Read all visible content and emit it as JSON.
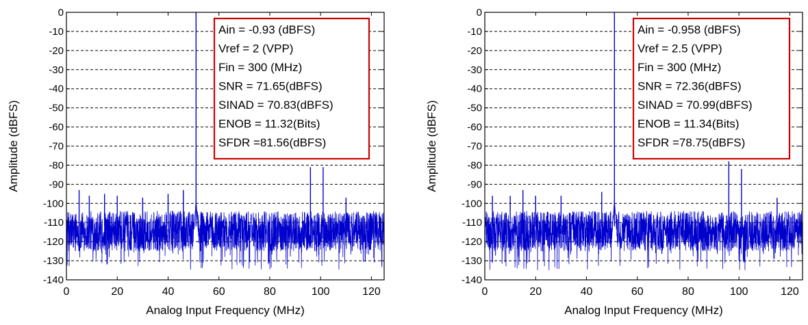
{
  "chart_data": [
    {
      "type": "line",
      "title": "",
      "xlabel": "Analog Input Frequency (MHz)",
      "ylabel": "Amplitude (dBFS)",
      "xlim": [
        0,
        125
      ],
      "ylim": [
        -140,
        0
      ],
      "xticks": [
        "0",
        "20",
        "40",
        "60",
        "80",
        "100",
        "120"
      ],
      "yticks": [
        "0",
        "-10",
        "-20",
        "-30",
        "-40",
        "-50",
        "-60",
        "-70",
        "-80",
        "-90",
        "-100",
        "-110",
        "-120",
        "-130",
        "-140"
      ],
      "grid": "horizontal-dashed",
      "series_color": "#0000cc",
      "noise_floor": {
        "band": [
          -125,
          -104
        ],
        "dips_to": -135
      },
      "spurs": [
        {
          "x": 5,
          "y": -93
        },
        {
          "x": 9,
          "y": -96
        },
        {
          "x": 15,
          "y": -95
        },
        {
          "x": 20,
          "y": -96
        },
        {
          "x": 30,
          "y": -97
        },
        {
          "x": 40,
          "y": -95
        },
        {
          "x": 46,
          "y": -93
        },
        {
          "x": 51,
          "y": 0
        },
        {
          "x": 96,
          "y": -81
        },
        {
          "x": 101,
          "y": -81
        },
        {
          "x": 110,
          "y": -97
        }
      ],
      "annotations": [
        "Ain = -0.93  (dBFS)",
        "Vref = 2 (VPP)",
        "Fin = 300 (MHz)",
        "SNR = 71.65(dBFS)",
        "SINAD = 70.83(dBFS)",
        "ENOB = 11.32(Bits)",
        "SFDR =81.56(dBFS)"
      ],
      "annotation_border": "#cc0000"
    },
    {
      "type": "line",
      "title": "",
      "xlabel": "Analog Input Frequency (MHz)",
      "ylabel": "Amplitude (dBFS)",
      "xlim": [
        0,
        125
      ],
      "ylim": [
        -140,
        0
      ],
      "xticks": [
        "0",
        "20",
        "40",
        "60",
        "80",
        "100",
        "120"
      ],
      "yticks": [
        "0",
        "-10",
        "-20",
        "-30",
        "-40",
        "-50",
        "-60",
        "-70",
        "-80",
        "-90",
        "-100",
        "-110",
        "-120",
        "-130",
        "-140"
      ],
      "grid": "horizontal-dashed",
      "series_color": "#0000cc",
      "noise_floor": {
        "band": [
          -125,
          -104
        ],
        "dips_to": -135
      },
      "spurs": [
        {
          "x": 3,
          "y": -96
        },
        {
          "x": 10,
          "y": -96
        },
        {
          "x": 15,
          "y": -93
        },
        {
          "x": 20,
          "y": -96
        },
        {
          "x": 30,
          "y": -96
        },
        {
          "x": 46,
          "y": -94
        },
        {
          "x": 51,
          "y": 0
        },
        {
          "x": 96,
          "y": -78
        },
        {
          "x": 101,
          "y": -82
        },
        {
          "x": 115,
          "y": -97
        }
      ],
      "annotations": [
        "Ain = -0.958  (dBFS)",
        "Vref = 2.5 (VPP)",
        "Fin = 300 (MHz)",
        "SNR = 72.36(dBFS)",
        "SINAD = 70.99(dBFS)",
        "ENOB = 11.34(Bits)",
        "SFDR =78.75(dBFS)"
      ],
      "annotation_border": "#cc0000"
    }
  ]
}
